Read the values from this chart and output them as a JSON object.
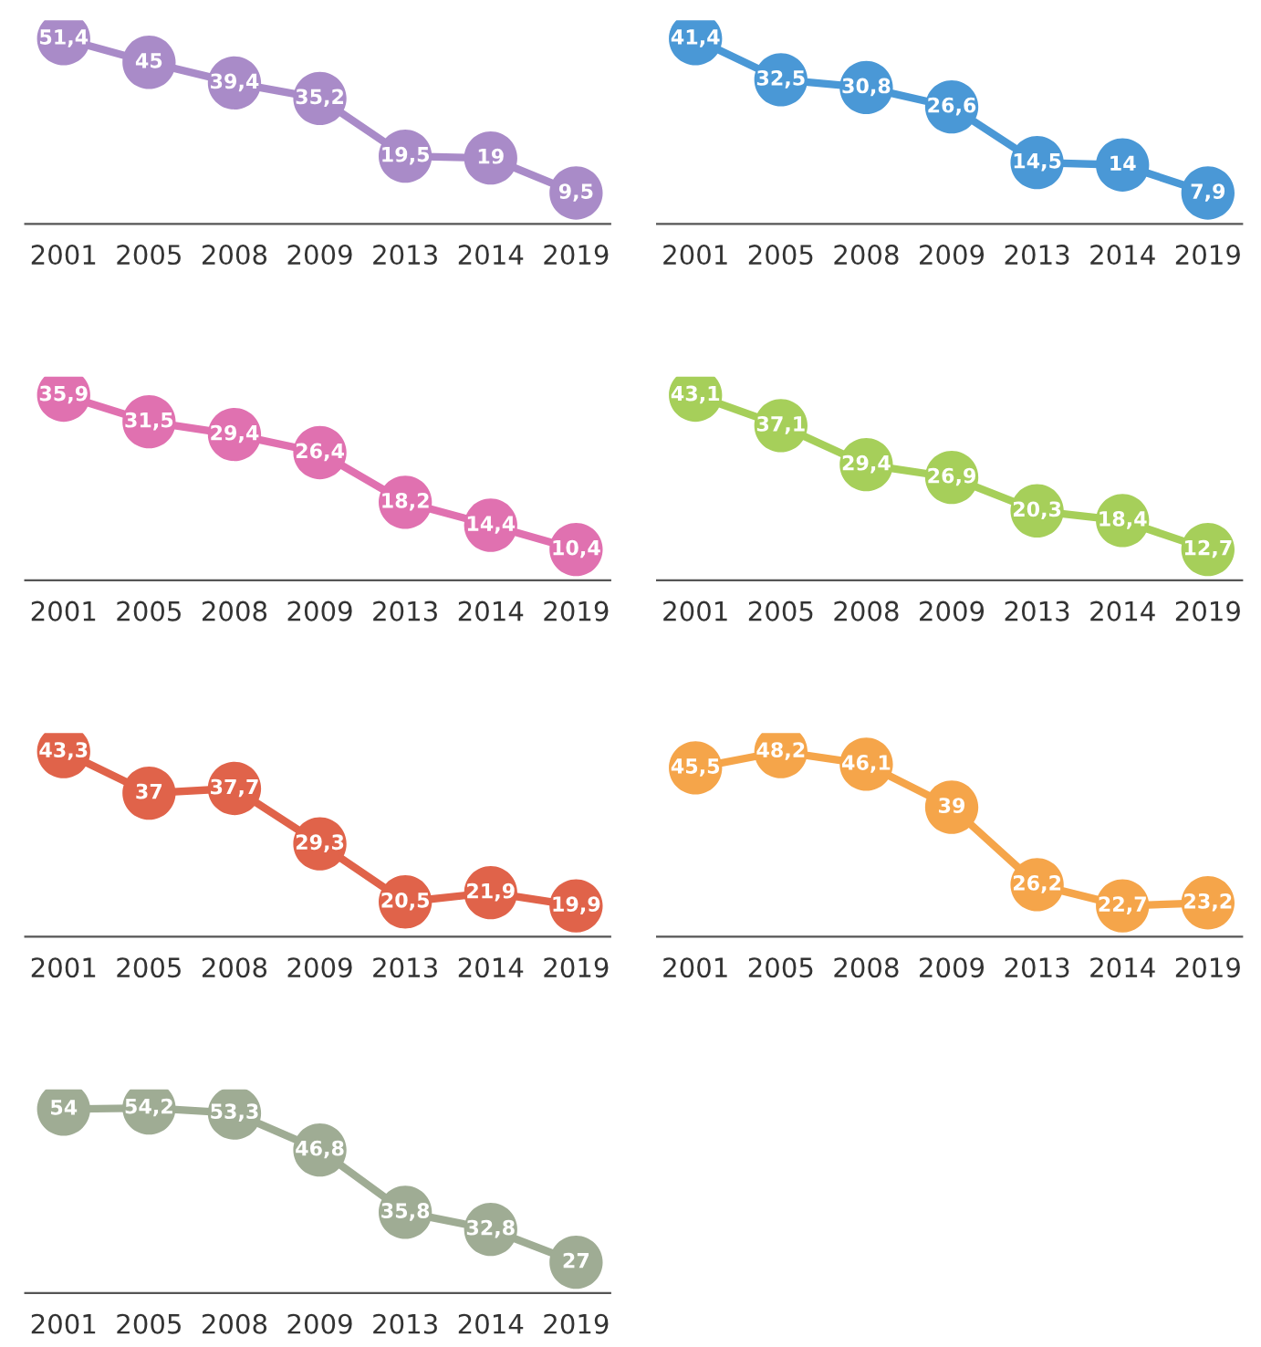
{
  "chart_data": [
    {
      "type": "line",
      "categories": [
        "2001",
        "2005",
        "2008",
        "2009",
        "2013",
        "2014",
        "2019"
      ],
      "marker": "circle",
      "tick_labels": "x",
      "series": [
        {
          "color": "#a98bc8",
          "values": [
            51.4,
            45,
            39.4,
            35.2,
            19.5,
            19,
            9.5
          ],
          "value_labels": [
            "51,4",
            "45",
            "39,4",
            "35,2",
            "19,5",
            "19",
            "9,5"
          ]
        }
      ]
    },
    {
      "type": "line",
      "categories": [
        "2001",
        "2005",
        "2008",
        "2009",
        "2013",
        "2014",
        "2019"
      ],
      "marker": "circle",
      "tick_labels": "x",
      "series": [
        {
          "color": "#4a98d6",
          "values": [
            41.4,
            32.5,
            30.8,
            26.6,
            14.5,
            14,
            7.9
          ],
          "value_labels": [
            "41,4",
            "32,5",
            "30,8",
            "26,6",
            "14,5",
            "14",
            "7,9"
          ]
        }
      ]
    },
    {
      "type": "line",
      "categories": [
        "2001",
        "2005",
        "2008",
        "2009",
        "2013",
        "2014",
        "2019"
      ],
      "marker": "circle",
      "tick_labels": "x",
      "series": [
        {
          "color": "#e071b0",
          "values": [
            35.9,
            31.5,
            29.4,
            26.4,
            18.2,
            14.4,
            10.4
          ],
          "value_labels": [
            "35,9",
            "31,5",
            "29,4",
            "26,4",
            "18,2",
            "14,4",
            "10,4"
          ]
        }
      ]
    },
    {
      "type": "line",
      "categories": [
        "2001",
        "2005",
        "2008",
        "2009",
        "2013",
        "2014",
        "2019"
      ],
      "marker": "circle",
      "tick_labels": "x",
      "series": [
        {
          "color": "#a6cf5a",
          "values": [
            43.1,
            37.1,
            29.4,
            26.9,
            20.3,
            18.4,
            12.7
          ],
          "value_labels": [
            "43,1",
            "37,1",
            "29,4",
            "26,9",
            "20,3",
            "18,4",
            "12,7"
          ]
        }
      ]
    },
    {
      "type": "line",
      "categories": [
        "2001",
        "2005",
        "2008",
        "2009",
        "2013",
        "2014",
        "2019"
      ],
      "marker": "circle",
      "tick_labels": "x",
      "series": [
        {
          "color": "#e0634a",
          "values": [
            43.3,
            37,
            37.7,
            29.3,
            20.5,
            21.9,
            19.9
          ],
          "value_labels": [
            "43,3",
            "37",
            "37,7",
            "29,3",
            "20,5",
            "21,9",
            "19,9"
          ]
        }
      ]
    },
    {
      "type": "line",
      "categories": [
        "2001",
        "2005",
        "2008",
        "2009",
        "2013",
        "2014",
        "2019"
      ],
      "marker": "circle",
      "tick_labels": "x",
      "series": [
        {
          "color": "#f5a54a",
          "values": [
            45.5,
            48.2,
            46.1,
            39,
            26.2,
            22.7,
            23.2
          ],
          "value_labels": [
            "45,5",
            "48,2",
            "46,1",
            "39",
            "26,2",
            "22,7",
            "23,2"
          ]
        }
      ]
    },
    {
      "type": "line",
      "categories": [
        "2001",
        "2005",
        "2008",
        "2009",
        "2013",
        "2014",
        "2019"
      ],
      "marker": "circle",
      "tick_labels": "x",
      "series": [
        {
          "color": "#9fac94",
          "values": [
            54,
            54.2,
            53.3,
            46.8,
            35.8,
            32.8,
            27
          ],
          "value_labels": [
            "54",
            "54,2",
            "53,3",
            "46,8",
            "35,8",
            "32,8",
            "27"
          ]
        }
      ]
    }
  ]
}
